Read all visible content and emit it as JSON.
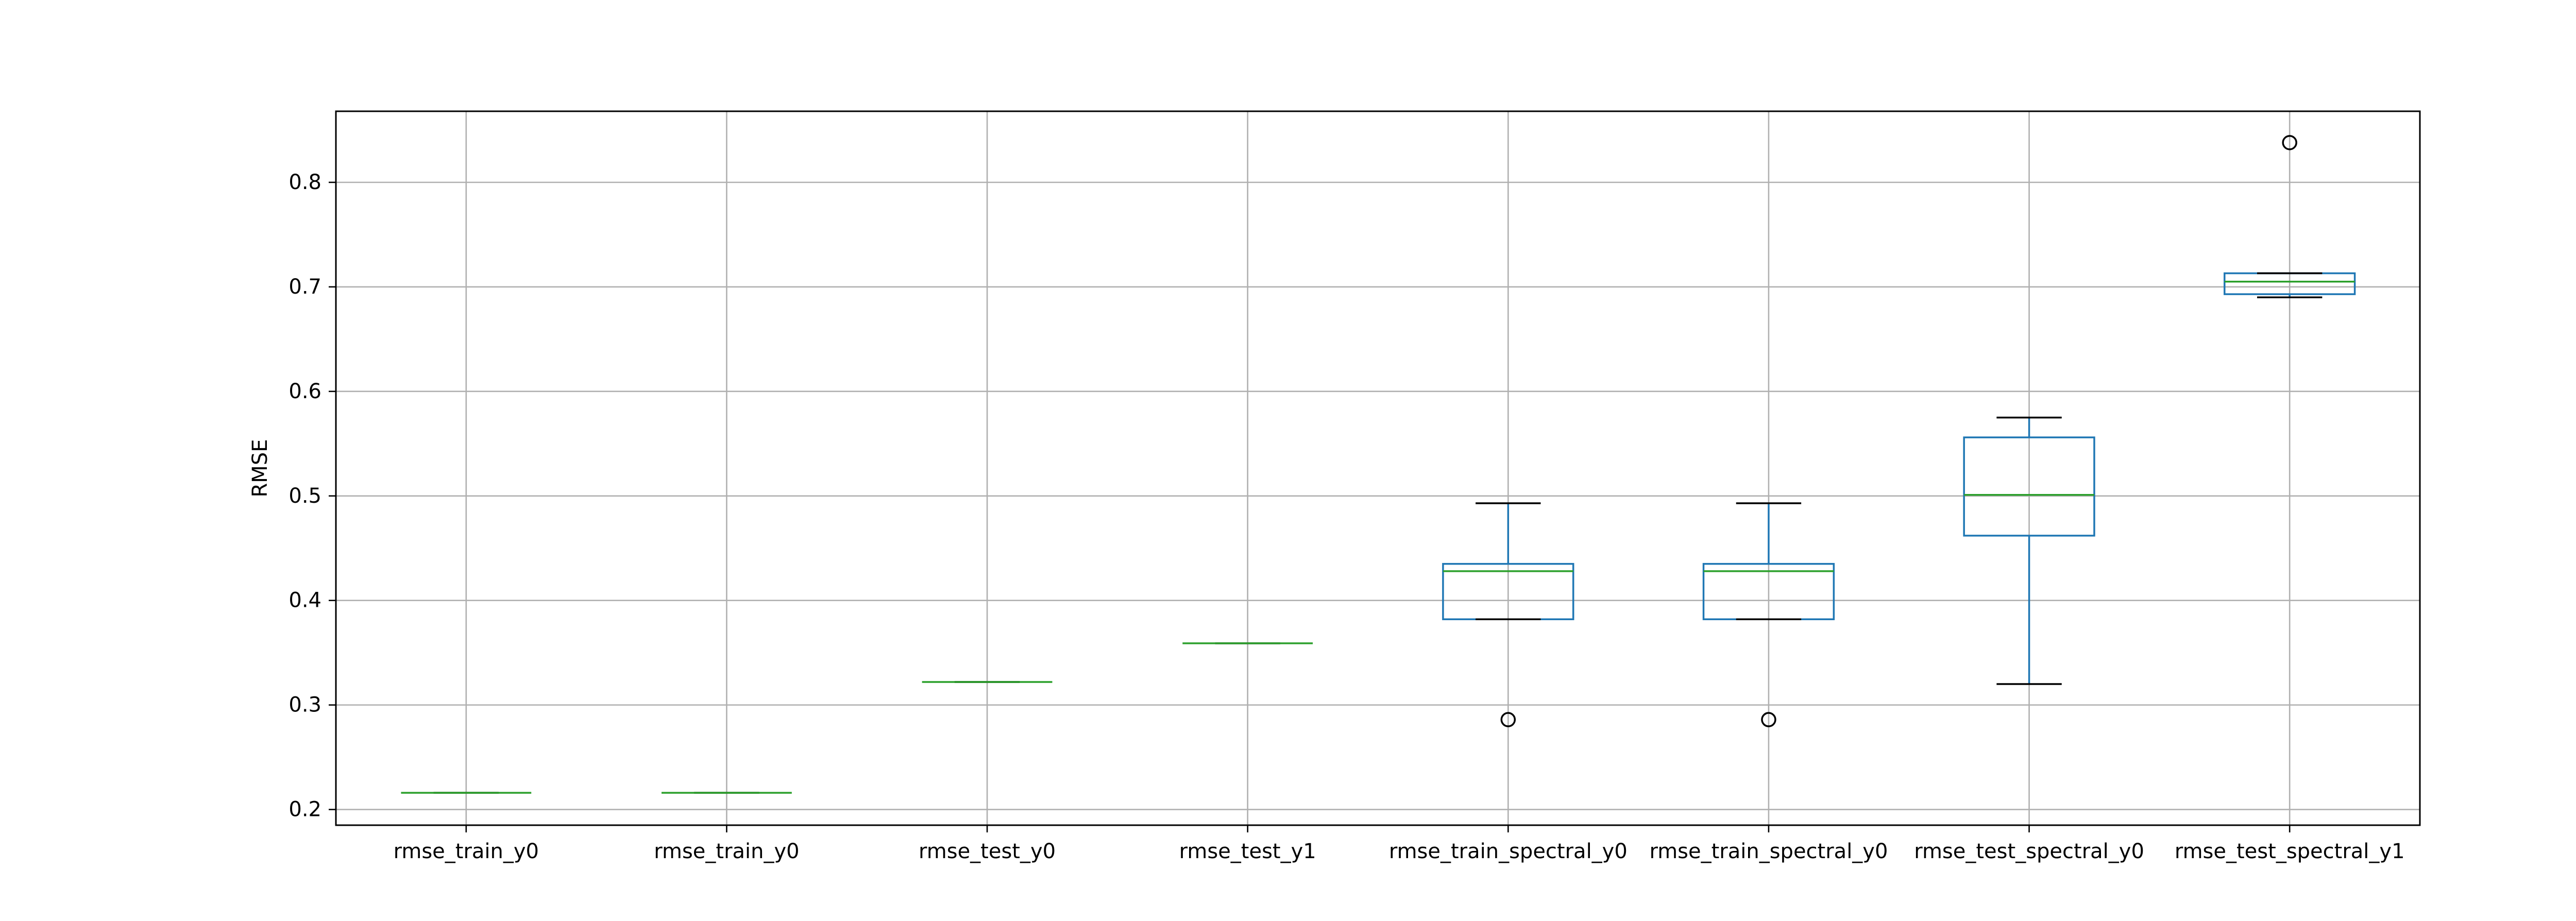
{
  "chart_data": {
    "type": "box",
    "title": "",
    "xlabel": "",
    "ylabel": "RMSE",
    "ylim": [
      0.185,
      0.868
    ],
    "yticks": [
      "0.2",
      "0.3",
      "0.4",
      "0.5",
      "0.6",
      "0.7",
      "0.8"
    ],
    "grid": true,
    "categories": [
      "rmse_train_y0",
      "rmse_train_y0",
      "rmse_test_y0",
      "rmse_test_y1",
      "rmse_train_spectral_y0",
      "rmse_train_spectral_y0",
      "rmse_test_spectral_y0",
      "rmse_test_spectral_y1"
    ],
    "boxes": [
      {
        "min": 0.216,
        "q1": 0.216,
        "median": 0.216,
        "q3": 0.216,
        "max": 0.216,
        "outliers": []
      },
      {
        "min": 0.216,
        "q1": 0.216,
        "median": 0.216,
        "q3": 0.216,
        "max": 0.216,
        "outliers": []
      },
      {
        "min": 0.322,
        "q1": 0.322,
        "median": 0.322,
        "q3": 0.322,
        "max": 0.322,
        "outliers": []
      },
      {
        "min": 0.359,
        "q1": 0.359,
        "median": 0.359,
        "q3": 0.359,
        "max": 0.359,
        "outliers": []
      },
      {
        "min": 0.382,
        "q1": 0.382,
        "median": 0.428,
        "q3": 0.435,
        "max": 0.493,
        "outliers": [
          0.286
        ]
      },
      {
        "min": 0.382,
        "q1": 0.382,
        "median": 0.428,
        "q3": 0.435,
        "max": 0.493,
        "outliers": [
          0.286
        ]
      },
      {
        "min": 0.32,
        "q1": 0.462,
        "median": 0.501,
        "q3": 0.556,
        "max": 0.575,
        "outliers": []
      },
      {
        "min": 0.69,
        "q1": 0.693,
        "median": 0.705,
        "q3": 0.713,
        "max": 0.713,
        "outliers": [
          0.838
        ]
      }
    ],
    "colors": {
      "box": "#1f77b4",
      "median": "#2ca02c",
      "whisker": "#1f77b4",
      "cap": "#000000",
      "grid": "#b0b0b0",
      "outlier": "#000000"
    }
  }
}
